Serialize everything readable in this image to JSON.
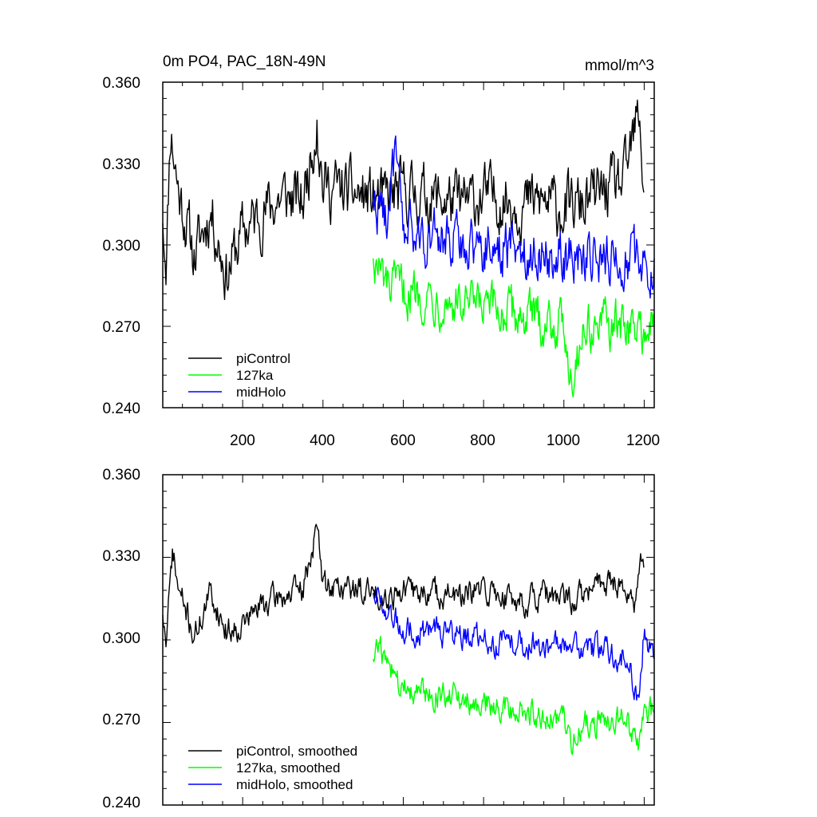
{
  "chart_data": [
    {
      "type": "line",
      "title": "0m PO4, PAC_18N-49N",
      "units": "mmol/m^3",
      "xlim": [
        1,
        1225
      ],
      "ylim": [
        0.24,
        0.36
      ],
      "yticks": [
        "0.240",
        "0.270",
        "0.300",
        "0.330",
        "0.360"
      ],
      "xticks": [
        "200",
        "400",
        "600",
        "800",
        "1000",
        "1200"
      ],
      "legend_position": "bottom-left",
      "series": [
        {
          "name": "piControl",
          "color": "#000000",
          "x_range": [
            1,
            1200
          ],
          "key_points": [
            [
              1,
              0.308
            ],
            [
              10,
              0.295
            ],
            [
              20,
              0.344
            ],
            [
              40,
              0.32
            ],
            [
              80,
              0.296
            ],
            [
              120,
              0.313
            ],
            [
              160,
              0.289
            ],
            [
              200,
              0.305
            ],
            [
              250,
              0.312
            ],
            [
              300,
              0.318
            ],
            [
              350,
              0.316
            ],
            [
              385,
              0.346
            ],
            [
              400,
              0.322
            ],
            [
              450,
              0.32
            ],
            [
              500,
              0.318
            ],
            [
              550,
              0.316
            ],
            [
              600,
              0.32
            ],
            [
              650,
              0.318
            ],
            [
              700,
              0.317
            ],
            [
              750,
              0.315
            ],
            [
              800,
              0.318
            ],
            [
              850,
              0.317
            ],
            [
              900,
              0.315
            ],
            [
              950,
              0.316
            ],
            [
              1000,
              0.313
            ],
            [
              1050,
              0.315
            ],
            [
              1100,
              0.32
            ],
            [
              1150,
              0.323
            ],
            [
              1185,
              0.347
            ],
            [
              1200,
              0.32
            ]
          ]
        },
        {
          "name": "127ka",
          "color": "#00ff00",
          "x_range": [
            525,
            1225
          ],
          "key_points": [
            [
              525,
              0.295
            ],
            [
              560,
              0.284
            ],
            [
              600,
              0.283
            ],
            [
              650,
              0.282
            ],
            [
              700,
              0.28
            ],
            [
              750,
              0.277
            ],
            [
              800,
              0.276
            ],
            [
              850,
              0.275
            ],
            [
              900,
              0.274
            ],
            [
              950,
              0.272
            ],
            [
              1000,
              0.271
            ],
            [
              1020,
              0.251
            ],
            [
              1050,
              0.27
            ],
            [
              1100,
              0.27
            ],
            [
              1150,
              0.27
            ],
            [
              1200,
              0.268
            ],
            [
              1225,
              0.27
            ]
          ]
        },
        {
          "name": "midHolo",
          "color": "#0000ff",
          "x_range": [
            525,
            1225
          ],
          "key_points": [
            [
              525,
              0.316
            ],
            [
              560,
              0.312
            ],
            [
              580,
              0.331
            ],
            [
              600,
              0.305
            ],
            [
              650,
              0.303
            ],
            [
              700,
              0.302
            ],
            [
              750,
              0.301
            ],
            [
              800,
              0.3
            ],
            [
              850,
              0.299
            ],
            [
              900,
              0.298
            ],
            [
              950,
              0.297
            ],
            [
              1000,
              0.296
            ],
            [
              1050,
              0.296
            ],
            [
              1100,
              0.295
            ],
            [
              1150,
              0.295
            ],
            [
              1200,
              0.293
            ],
            [
              1225,
              0.295
            ]
          ]
        }
      ]
    },
    {
      "type": "line",
      "xlim": [
        1,
        1225
      ],
      "ylim": [
        0.24,
        0.36
      ],
      "yticks": [
        "0.240",
        "0.270",
        "0.300",
        "0.330",
        "0.360"
      ],
      "legend_position": "bottom-left",
      "series": [
        {
          "name": "piControl, smoothed",
          "color": "#000000",
          "x_range": [
            1,
            1200
          ],
          "key_points": [
            [
              1,
              0.309
            ],
            [
              10,
              0.298
            ],
            [
              25,
              0.333
            ],
            [
              40,
              0.318
            ],
            [
              60,
              0.31
            ],
            [
              80,
              0.301
            ],
            [
              120,
              0.317
            ],
            [
              160,
              0.303
            ],
            [
              200,
              0.306
            ],
            [
              250,
              0.313
            ],
            [
              300,
              0.316
            ],
            [
              350,
              0.318
            ],
            [
              385,
              0.341
            ],
            [
              400,
              0.32
            ],
            [
              450,
              0.319
            ],
            [
              500,
              0.318
            ],
            [
              550,
              0.316
            ],
            [
              600,
              0.318
            ],
            [
              650,
              0.317
            ],
            [
              700,
              0.317
            ],
            [
              750,
              0.315
            ],
            [
              800,
              0.318
            ],
            [
              850,
              0.316
            ],
            [
              900,
              0.314
            ],
            [
              950,
              0.316
            ],
            [
              1000,
              0.314
            ],
            [
              1050,
              0.316
            ],
            [
              1100,
              0.322
            ],
            [
              1150,
              0.32
            ],
            [
              1175,
              0.31
            ],
            [
              1190,
              0.334
            ],
            [
              1200,
              0.324
            ]
          ]
        },
        {
          "name": "127ka, smoothed",
          "color": "#00ff00",
          "x_range": [
            525,
            1225
          ],
          "key_points": [
            [
              525,
              0.293
            ],
            [
              540,
              0.298
            ],
            [
              560,
              0.29
            ],
            [
              600,
              0.283
            ],
            [
              650,
              0.282
            ],
            [
              700,
              0.28
            ],
            [
              750,
              0.278
            ],
            [
              800,
              0.277
            ],
            [
              850,
              0.276
            ],
            [
              900,
              0.275
            ],
            [
              950,
              0.272
            ],
            [
              1000,
              0.271
            ],
            [
              1020,
              0.26
            ],
            [
              1050,
              0.27
            ],
            [
              1100,
              0.27
            ],
            [
              1150,
              0.271
            ],
            [
              1185,
              0.26
            ],
            [
              1200,
              0.272
            ],
            [
              1225,
              0.274
            ]
          ]
        },
        {
          "name": "midHolo, smoothed",
          "color": "#0000ff",
          "x_range": [
            525,
            1225
          ],
          "key_points": [
            [
              525,
              0.317
            ],
            [
              560,
              0.312
            ],
            [
              600,
              0.305
            ],
            [
              650,
              0.303
            ],
            [
              700,
              0.302
            ],
            [
              750,
              0.301
            ],
            [
              800,
              0.3
            ],
            [
              850,
              0.299
            ],
            [
              900,
              0.298
            ],
            [
              950,
              0.298
            ],
            [
              1000,
              0.297
            ],
            [
              1050,
              0.297
            ],
            [
              1100,
              0.296
            ],
            [
              1150,
              0.294
            ],
            [
              1185,
              0.28
            ],
            [
              1200,
              0.305
            ],
            [
              1225,
              0.293
            ]
          ]
        }
      ]
    }
  ]
}
